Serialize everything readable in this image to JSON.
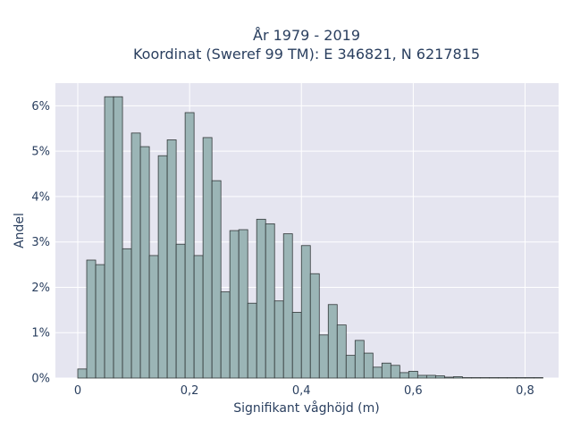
{
  "chart_data": {
    "type": "bar",
    "title_line1": "År 1979 - 2019",
    "title_line2": "Koordinat (Sweref 99 TM): E 346821, N 6217815",
    "xlabel": "Signifikant våghöjd (m)",
    "ylabel": "Andel",
    "xlim": [
      -0.04,
      0.86
    ],
    "ylim": [
      0,
      6.5
    ],
    "bin_width": 0.016,
    "bin_start": 0,
    "x_ticks": [
      {
        "value": 0,
        "label": "0"
      },
      {
        "value": 0.2,
        "label": "0,2"
      },
      {
        "value": 0.4,
        "label": "0,4"
      },
      {
        "value": 0.6,
        "label": "0,6"
      },
      {
        "value": 0.8,
        "label": "0,8"
      }
    ],
    "y_ticks": [
      {
        "value": 0,
        "label": "0%"
      },
      {
        "value": 1,
        "label": "1%"
      },
      {
        "value": 2,
        "label": "2%"
      },
      {
        "value": 3,
        "label": "3%"
      },
      {
        "value": 4,
        "label": "4%"
      },
      {
        "value": 5,
        "label": "5%"
      },
      {
        "value": 6,
        "label": "6%"
      }
    ],
    "values": [
      0.2,
      2.6,
      2.5,
      6.2,
      6.2,
      2.85,
      5.4,
      5.1,
      2.7,
      4.9,
      5.25,
      2.95,
      5.85,
      2.7,
      5.3,
      4.35,
      1.9,
      3.25,
      3.27,
      1.65,
      3.5,
      3.4,
      1.7,
      3.18,
      1.45,
      2.92,
      2.3,
      0.95,
      1.62,
      1.17,
      0.5,
      0.83,
      0.55,
      0.24,
      0.33,
      0.28,
      0.12,
      0.15,
      0.06,
      0.06,
      0.05,
      0.02,
      0.03,
      0.01,
      0.01,
      0.01,
      0.01,
      0.01,
      0.01,
      0.01,
      0.01,
      0.01
    ]
  }
}
